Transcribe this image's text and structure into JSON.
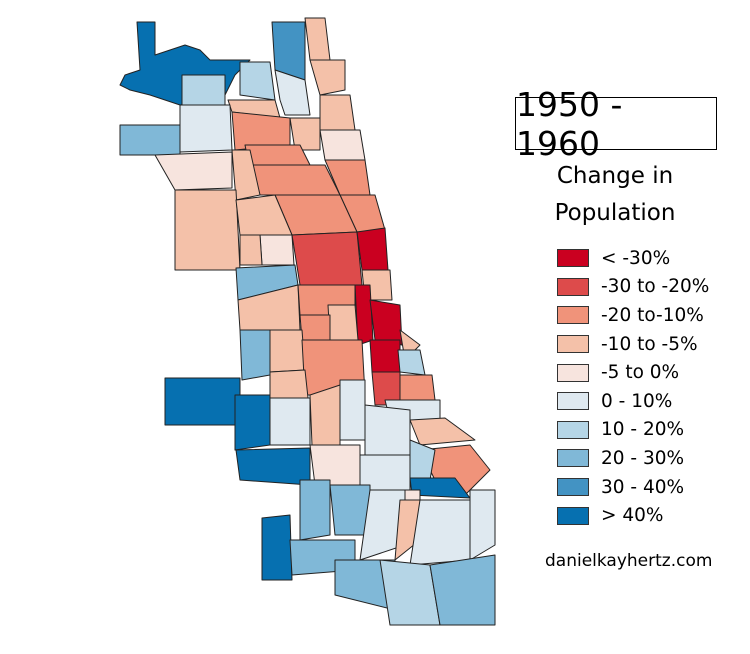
{
  "title": "1950 - 1960",
  "legend": {
    "title_line1": "Change in",
    "title_line2": "Population",
    "classes": [
      {
        "label": "< -30%",
        "color": "#ca0020"
      },
      {
        "label": "-30 to -20%",
        "color": "#dd4b4b"
      },
      {
        "label": "-20 to-10%",
        "color": "#f0937a"
      },
      {
        "label": "-10 to -5%",
        "color": "#f4c1a9"
      },
      {
        "label": "-5 to 0%",
        "color": "#f7e4de"
      },
      {
        "label": "0 - 10%",
        "color": "#dfe9f0"
      },
      {
        "label": "10 - 20%",
        "color": "#b5d5e6"
      },
      {
        "label": "20 - 30%",
        "color": "#80b8d7"
      },
      {
        "label": "30 - 40%",
        "color": "#4393c3"
      },
      {
        "label": "> 40%",
        "color": "#0670b0"
      }
    ]
  },
  "region_classes": [
    9,
    8,
    6,
    6,
    5,
    3,
    3,
    3,
    3,
    2,
    3,
    4,
    5,
    7,
    4,
    2,
    2,
    2,
    2,
    2,
    3,
    3,
    3,
    4,
    3,
    1,
    0,
    7,
    3,
    2,
    3,
    0,
    0,
    3,
    2,
    7,
    3,
    2,
    0,
    3,
    6,
    1,
    2,
    9,
    9,
    3,
    5,
    3,
    5,
    5,
    5,
    3,
    2,
    9,
    4,
    5,
    6,
    9,
    4,
    7,
    7,
    5,
    3,
    5,
    5,
    9,
    7,
    7,
    6,
    7
  ],
  "credit": "danielkayhertz.com"
}
